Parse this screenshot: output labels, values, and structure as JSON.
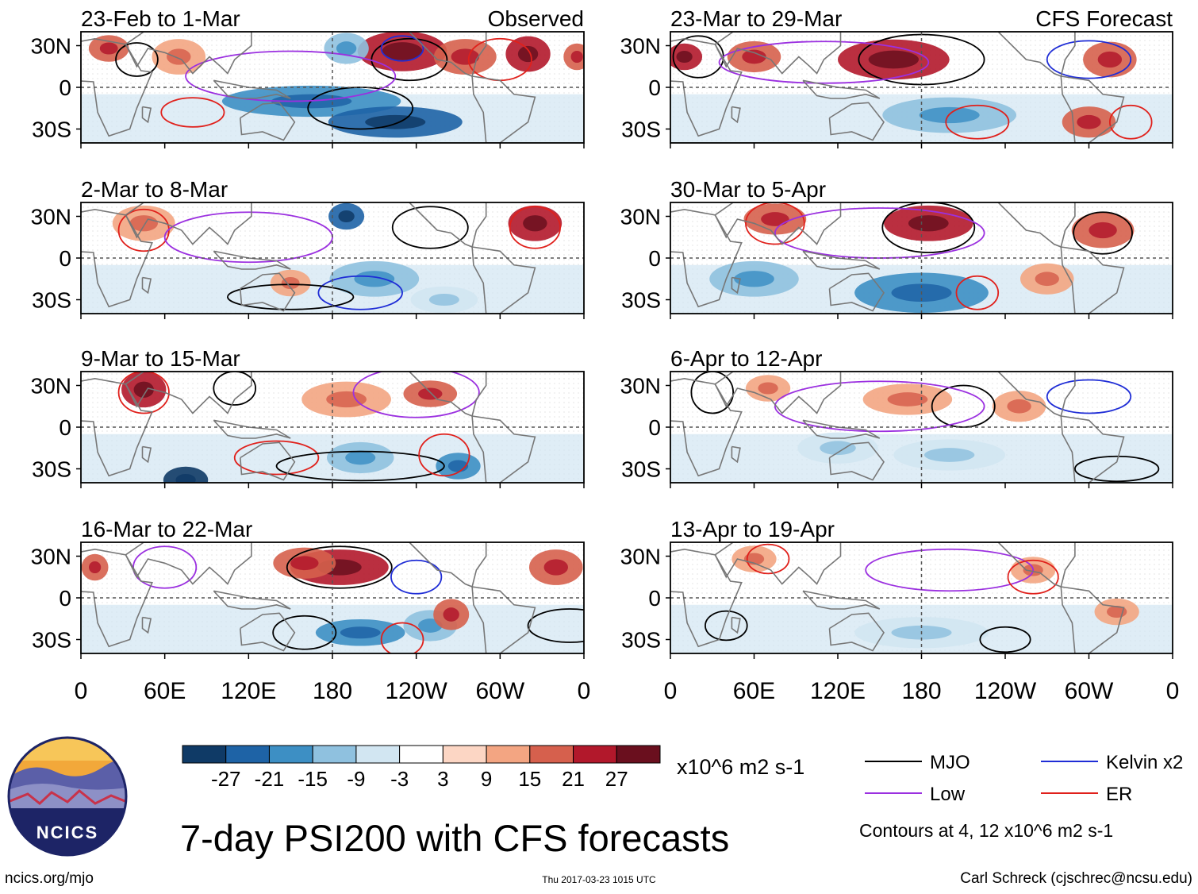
{
  "chart_data": {
    "type": "heatmap",
    "title": "7-day PSI200 with CFS forecasts",
    "variable": "PSI200 anomaly",
    "column_titles": {
      "left": "Observed",
      "right": "CFS Forecast"
    },
    "panels": [
      {
        "period": "23-Feb to 1-Mar",
        "source": "Observed"
      },
      {
        "period": "2-Mar to 8-Mar",
        "source": "Observed"
      },
      {
        "period": "9-Mar to 15-Mar",
        "source": "Observed"
      },
      {
        "period": "16-Mar to 22-Mar",
        "source": "Observed"
      },
      {
        "period": "23-Mar to 29-Mar",
        "source": "CFS Forecast"
      },
      {
        "period": "30-Mar to 5-Apr",
        "source": "CFS Forecast"
      },
      {
        "period": "6-Apr to 12-Apr",
        "source": "CFS Forecast"
      },
      {
        "period": "13-Apr to 19-Apr",
        "source": "CFS Forecast"
      }
    ],
    "y_ticks": [
      "30N",
      "0",
      "30S"
    ],
    "y_tick_values": [
      30,
      0,
      -30
    ],
    "ylim": [
      -40,
      40
    ],
    "x_ticks": [
      "0",
      "60E",
      "120E",
      "180",
      "120W",
      "60W",
      "0"
    ],
    "x_tick_values": [
      0,
      60,
      120,
      180,
      240,
      300,
      360
    ],
    "xlim": [
      0,
      360
    ],
    "colorbar": {
      "labels": [
        "-27",
        "-21",
        "-15",
        "-9",
        "-3",
        "3",
        "9",
        "15",
        "21",
        "27"
      ],
      "levels": [
        -27,
        -21,
        -15,
        -9,
        -3,
        3,
        9,
        15,
        21,
        27
      ],
      "colors": [
        "#0f3a66",
        "#1e63a6",
        "#3d8fc4",
        "#8fc1df",
        "#d2e6f2",
        "#ffffff",
        "#fcd6c4",
        "#f3a582",
        "#d6604d",
        "#b2182b",
        "#6a0f1e"
      ],
      "units": "x10^6 m2 s-1"
    },
    "legend": [
      {
        "label": "MJO",
        "color": "#000000"
      },
      {
        "label": "Kelvin x2",
        "color": "#1f2dd6"
      },
      {
        "label": "Low",
        "color": "#9b30e0"
      },
      {
        "label": "ER",
        "color": "#e0201b"
      }
    ],
    "contour_note": "Contours at 4, 12 x10^6 m2 s-1"
  },
  "footer": {
    "logo_text": "NCICS",
    "url": "ncics.org/mjo",
    "timestamp": "Thu 2017-03-23 1015 UTC",
    "credit": "Carl Schreck (cjschrec@ncsu.edu)"
  }
}
